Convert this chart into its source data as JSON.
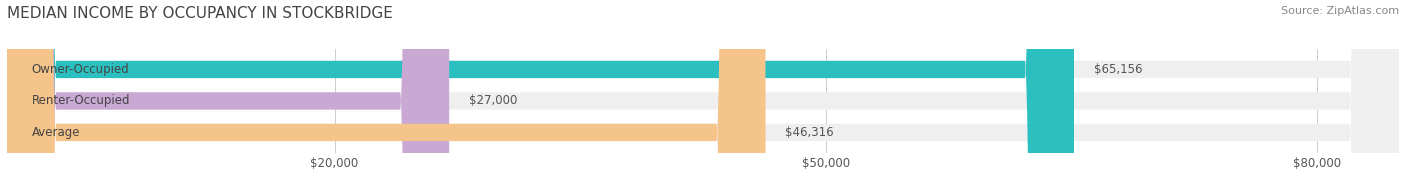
{
  "title": "MEDIAN INCOME BY OCCUPANCY IN STOCKBRIDGE",
  "source": "Source: ZipAtlas.com",
  "categories": [
    "Owner-Occupied",
    "Renter-Occupied",
    "Average"
  ],
  "values": [
    65156,
    27000,
    46316
  ],
  "bar_colors": [
    "#2bbfbf",
    "#c9a8d4",
    "#f5c48a"
  ],
  "bar_bg_color": "#efefef",
  "value_labels": [
    "$65,156",
    "$27,000",
    "$46,316"
  ],
  "xlabel_ticks": [
    20000,
    50000,
    80000
  ],
  "xlabel_labels": [
    "$20,000",
    "$50,000",
    "$80,000"
  ],
  "xlim": [
    0,
    85000
  ],
  "title_fontsize": 11,
  "source_fontsize": 8,
  "label_fontsize": 8.5,
  "tick_fontsize": 8.5,
  "bar_height": 0.55,
  "background_color": "#ffffff",
  "bar_label_color": "#555555",
  "category_label_color": "#444444",
  "title_color": "#444444",
  "source_color": "#888888"
}
